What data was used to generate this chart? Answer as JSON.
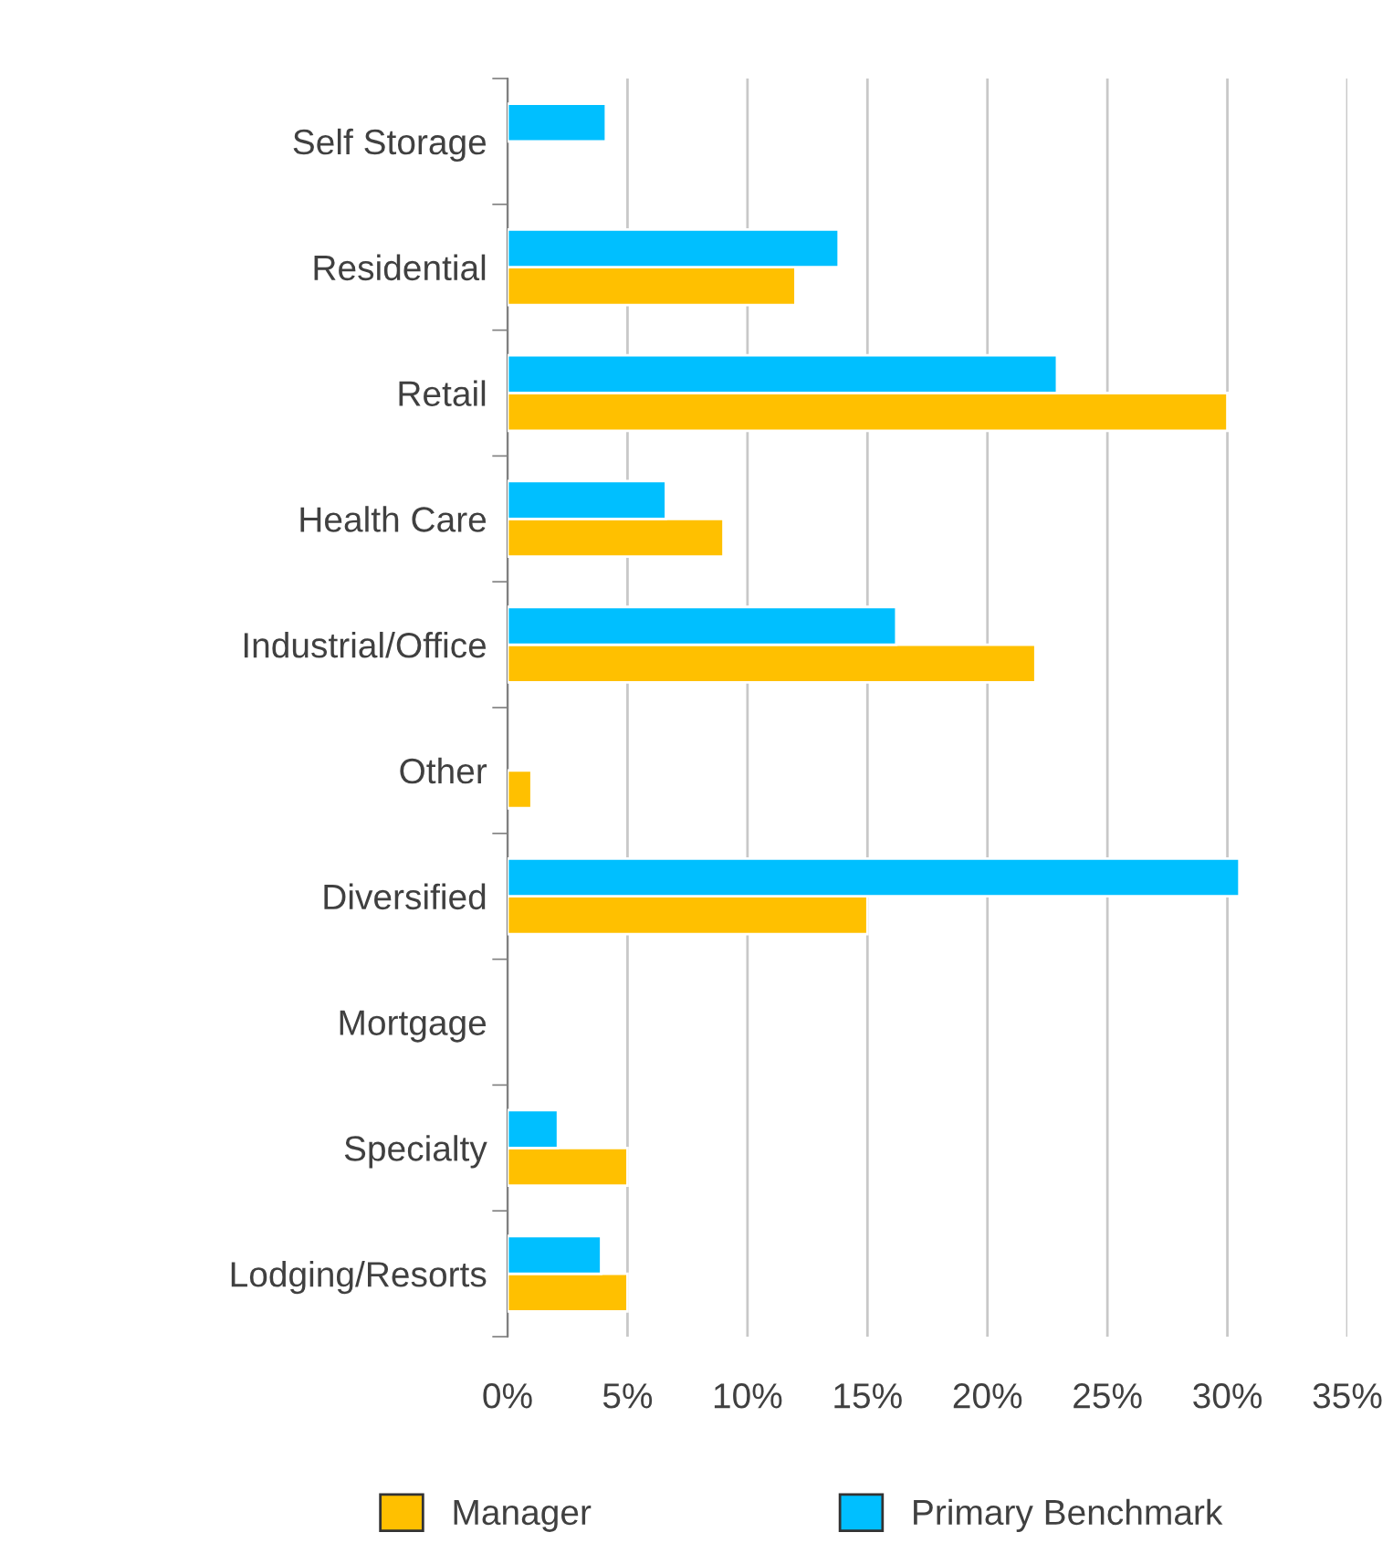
{
  "chart_data": {
    "type": "bar",
    "orientation": "horizontal",
    "categories": [
      "Self Storage",
      "Residential",
      "Retail",
      "Health Care",
      "Industrial/Office",
      "Other",
      "Diversified",
      "Mortgage",
      "Specialty",
      "Lodging/Resorts"
    ],
    "series": [
      {
        "name": "Manager",
        "color": "#ffc000",
        "values": [
          null,
          12.0,
          30.0,
          9.0,
          22.0,
          1.0,
          15.0,
          null,
          5.0,
          5.0
        ]
      },
      {
        "name": "Primary Benchmark",
        "color": "#00bfff",
        "values": [
          4.1,
          13.8,
          22.9,
          6.6,
          16.2,
          null,
          30.5,
          null,
          2.1,
          3.9
        ]
      }
    ],
    "xlim": [
      0,
      35
    ],
    "xticks": [
      {
        "value": 0,
        "label": "0%"
      },
      {
        "value": 5,
        "label": "5%"
      },
      {
        "value": 10,
        "label": "10%"
      },
      {
        "value": 15,
        "label": "15%"
      },
      {
        "value": 20,
        "label": "20%"
      },
      {
        "value": 25,
        "label": "25%"
      },
      {
        "value": 30,
        "label": "30%"
      },
      {
        "value": 35,
        "label": "35%"
      }
    ],
    "grid": "x",
    "legend": "bottom"
  }
}
